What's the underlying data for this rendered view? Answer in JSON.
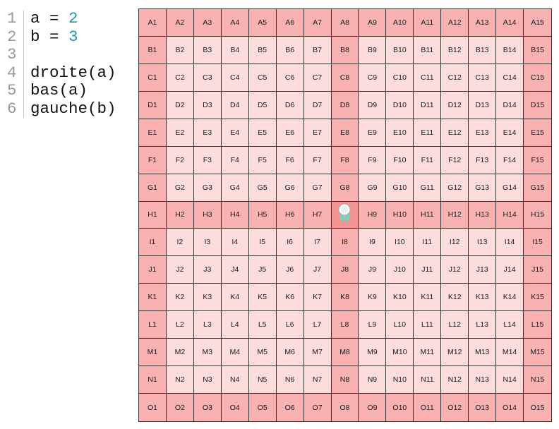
{
  "code": {
    "lines": [
      {
        "num": "1",
        "parts": [
          {
            "t": "a = ",
            "k": "text"
          },
          {
            "t": "2",
            "k": "num"
          }
        ]
      },
      {
        "num": "2",
        "parts": [
          {
            "t": "b = ",
            "k": "text"
          },
          {
            "t": "3",
            "k": "num"
          }
        ]
      },
      {
        "num": "3",
        "parts": []
      },
      {
        "num": "4",
        "parts": [
          {
            "t": "droite(a)",
            "k": "text"
          }
        ]
      },
      {
        "num": "5",
        "parts": [
          {
            "t": "bas(a)",
            "k": "text"
          }
        ]
      },
      {
        "num": "6",
        "parts": [
          {
            "t": "gauche(b)",
            "k": "text"
          }
        ]
      }
    ]
  },
  "board": {
    "rows": [
      "A",
      "B",
      "C",
      "D",
      "E",
      "F",
      "G",
      "H",
      "I",
      "J",
      "K",
      "L",
      "M",
      "N",
      "O"
    ],
    "cols": 15,
    "highlight_row": "H",
    "highlight_col": 8,
    "robot_cell": "H8",
    "colors": {
      "light": "#fddcdc",
      "mid": "#f9b1b1",
      "dark": "#f29494",
      "robot_body": "#86cbb8",
      "robot_head": "#ffffff"
    }
  },
  "robot": {
    "icon": "robot-icon"
  }
}
